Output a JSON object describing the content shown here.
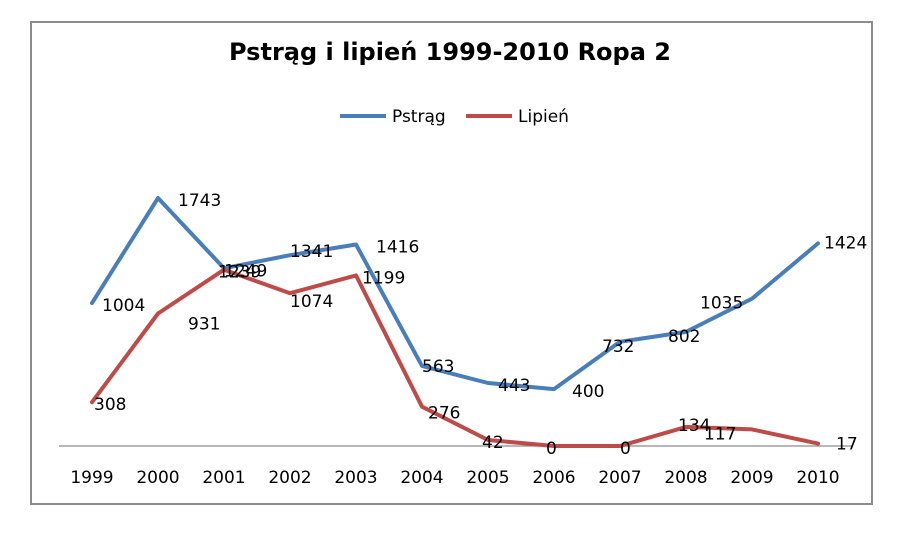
{
  "chart_data": {
    "type": "line",
    "title": "Pstrąg i lipień 1999-2010 Ropa 2",
    "categories": [
      "1999",
      "2000",
      "2001",
      "2002",
      "2003",
      "2004",
      "2005",
      "2006",
      "2007",
      "2008",
      "2009",
      "2010"
    ],
    "series": [
      {
        "name": "Pstrąg",
        "color": "#4a7ebb",
        "values": [
          1004,
          1743,
          1249,
          1341,
          1416,
          563,
          443,
          400,
          732,
          802,
          1035,
          1424
        ]
      },
      {
        "name": "Lipień",
        "color": "#be4b48",
        "values": [
          308,
          931,
          1239,
          1074,
          1199,
          276,
          42,
          0,
          0,
          134,
          117,
          17
        ]
      }
    ],
    "legend_position": "top",
    "grid": false,
    "ylim": [
      0,
      2000
    ]
  }
}
